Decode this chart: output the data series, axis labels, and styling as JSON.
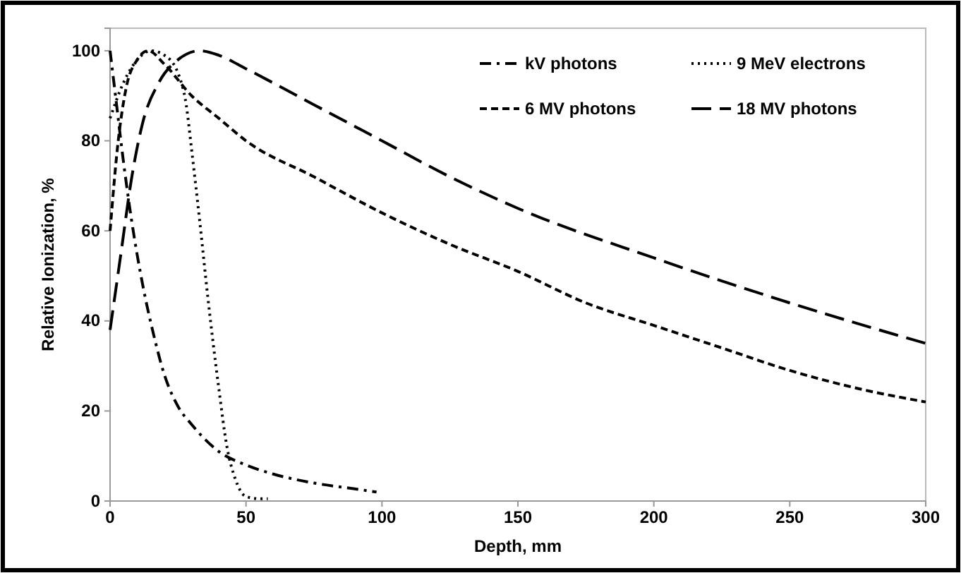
{
  "chart_data": {
    "type": "line",
    "xlabel": "Depth, mm",
    "ylabel": "Relative Ionization, %",
    "xlim": [
      0,
      300
    ],
    "ylim": [
      0,
      105
    ],
    "xticks": [
      0,
      50,
      100,
      150,
      200,
      250,
      300
    ],
    "yticks": [
      0,
      20,
      40,
      60,
      80,
      100
    ],
    "legend": "top right",
    "grid": false,
    "marker": "none",
    "series": [
      {
        "name": "kV photons",
        "color": "#000000",
        "line_style": "dashdot",
        "x": [
          0,
          2,
          5,
          8,
          12,
          16,
          20,
          25,
          30,
          40,
          50,
          60,
          75,
          90,
          98
        ],
        "values": [
          100,
          90,
          75,
          62,
          48,
          37,
          28,
          21,
          17,
          11,
          8,
          6,
          4,
          2.7,
          2
        ]
      },
      {
        "name": "9 MeV electrons",
        "color": "#000000",
        "line_style": "dotted",
        "x": [
          0,
          5,
          10,
          15,
          20,
          25,
          28,
          30,
          33,
          36,
          40,
          43,
          46,
          50,
          55,
          58
        ],
        "values": [
          85,
          93,
          98,
          100,
          99,
          95,
          88,
          78,
          62,
          45,
          25,
          12,
          5,
          1,
          0.5,
          0.5
        ]
      },
      {
        "name": "6 MV photons",
        "color": "#000000",
        "line_style": "dashed",
        "x": [
          0,
          3,
          6,
          10,
          14,
          20,
          30,
          40,
          50,
          75,
          100,
          125,
          150,
          175,
          200,
          225,
          250,
          275,
          300
        ],
        "values": [
          60,
          80,
          92,
          98,
          100,
          97,
          90,
          85,
          80,
          72,
          64,
          57,
          51,
          44,
          39,
          34,
          29,
          25,
          22
        ]
      },
      {
        "name": "18 MV photons",
        "color": "#000000",
        "line_style": "longdash",
        "x": [
          0,
          4,
          8,
          12,
          18,
          25,
          33,
          40,
          50,
          75,
          100,
          125,
          150,
          200,
          250,
          300
        ],
        "values": [
          38,
          55,
          72,
          84,
          93,
          98,
          100,
          99,
          96,
          88,
          80,
          72,
          65,
          54,
          44,
          35
        ]
      }
    ]
  }
}
